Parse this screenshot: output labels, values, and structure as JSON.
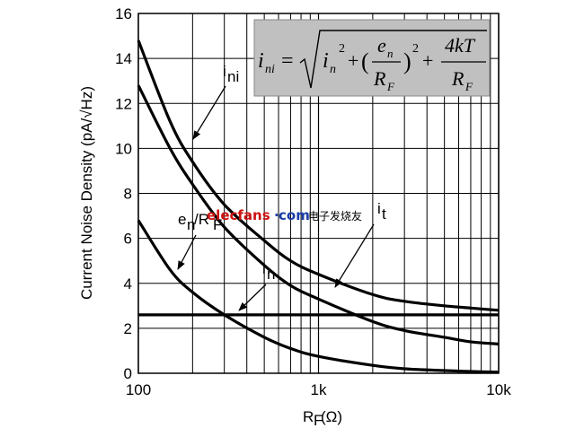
{
  "chart_data": {
    "type": "line",
    "title": "",
    "xlabel_main": "R",
    "xlabel_sub": "F",
    "xlabel_unit": "(Ω)",
    "ylabel": "Current Noise Density (pA/√Hz)",
    "x_scale": "log",
    "xlim": [
      100,
      10000
    ],
    "ylim": [
      0,
      16
    ],
    "x_ticks": [
      100,
      1000,
      10000
    ],
    "x_tick_labels": [
      "100",
      "1k",
      "10k"
    ],
    "y_ticks": [
      0,
      2,
      4,
      6,
      8,
      10,
      12,
      14,
      16
    ],
    "y_tick_labels": [
      "0",
      "2",
      "4",
      "6",
      "8",
      "10",
      "12",
      "14",
      "16"
    ],
    "grid": true,
    "legend": "none",
    "series": [
      {
        "name": "ini",
        "x": [
          100,
          150,
          200,
          300,
          500,
          700,
          1000,
          2000,
          3000,
          5000,
          7000,
          10000
        ],
        "y": [
          14.8,
          11.2,
          9.4,
          7.5,
          5.9,
          5.0,
          4.4,
          3.5,
          3.2,
          3.0,
          2.9,
          2.8
        ]
      },
      {
        "name": "en/RF",
        "x": [
          100,
          150,
          200,
          300,
          500,
          700,
          1000,
          2000,
          3000,
          5000,
          7000,
          10000
        ],
        "y": [
          12.8,
          10.0,
          8.4,
          6.5,
          4.8,
          3.9,
          3.3,
          2.3,
          1.9,
          1.6,
          1.4,
          1.3
        ]
      },
      {
        "name": "it",
        "x": [
          100,
          150,
          200,
          300,
          500,
          700,
          1000,
          2000,
          3000,
          5000,
          7000,
          10000
        ],
        "y": [
          6.8,
          4.6,
          3.6,
          2.6,
          1.6,
          1.1,
          0.75,
          0.35,
          0.2,
          0.12,
          0.08,
          0.05
        ]
      },
      {
        "name": "in",
        "x": [
          100,
          10000
        ],
        "y": [
          2.6,
          2.6
        ]
      }
    ],
    "annotations": {
      "ini": {
        "main": "i",
        "sub": "ni"
      },
      "en_rf": {
        "main": "e",
        "sub": "n",
        "rest": "/R",
        "sub2": "F"
      },
      "it": {
        "main": "i",
        "sub": "t"
      },
      "in": {
        "main": "i",
        "sub": "n"
      }
    },
    "formula": {
      "lhs": "i",
      "lhs_sub": "ni",
      "eq": "=",
      "term1": "i",
      "term1_sub": "n",
      "sq": "2",
      "plus": "+",
      "frac1_num": "e",
      "frac1_num_sub": "n",
      "frac1_den": "R",
      "frac1_den_sub": "F",
      "open": "(",
      "close": ")",
      "frac2_num": "4kT",
      "frac2_den": "R",
      "frac2_den_sub": "F"
    },
    "watermark": {
      "brand": "elecfans",
      "dot": "·",
      "domain": "com",
      "cn": "电子发烧友"
    },
    "colors": {
      "line": "#000000",
      "grid": "#000000",
      "formula_box": "#c0c0c0",
      "wm_red": "#cc1111",
      "wm_blue": "#1a3da8"
    }
  }
}
